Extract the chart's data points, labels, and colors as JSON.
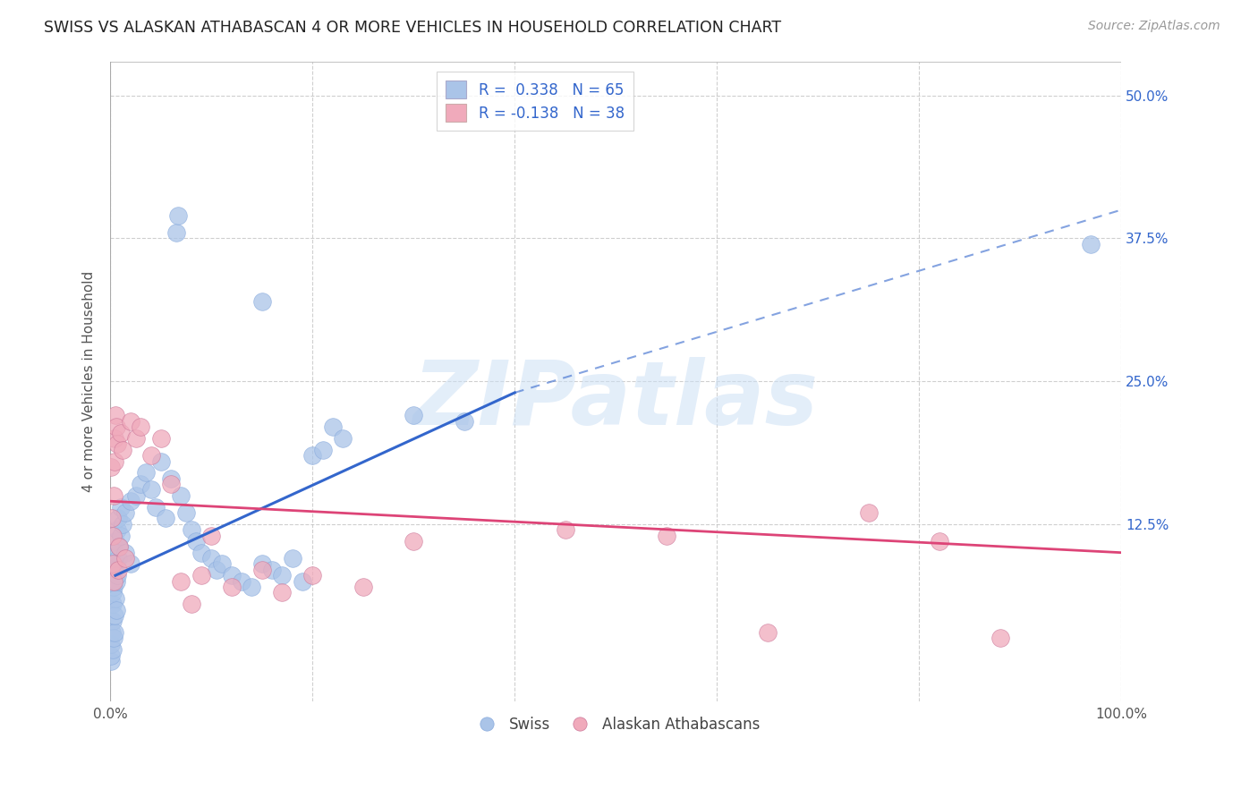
{
  "title": "SWISS VS ALASKAN ATHABASCAN 4 OR MORE VEHICLES IN HOUSEHOLD CORRELATION CHART",
  "source": "Source: ZipAtlas.com",
  "ylabel": "4 or more Vehicles in Household",
  "xlim": [
    0.0,
    100.0
  ],
  "ylim": [
    -3.0,
    53.0
  ],
  "xticks": [
    0.0,
    20.0,
    40.0,
    60.0,
    80.0,
    100.0
  ],
  "ytick_labels": [
    "12.5%",
    "25.0%",
    "37.5%",
    "50.0%"
  ],
  "yticks": [
    12.5,
    25.0,
    37.5,
    50.0
  ],
  "watermark": "ZIPatlas",
  "swiss_color": "#aac4e8",
  "alaskan_color": "#f0aabb",
  "swiss_line_color": "#3366cc",
  "alaskan_line_color": "#dd4477",
  "swiss_R": 0.338,
  "swiss_N": 65,
  "alaskan_R": -0.138,
  "alaskan_N": 38,
  "legend_text_color": "#3366cc",
  "background_color": "#ffffff",
  "grid_color": "#bbbbbb",
  "swiss_line_start_x": 0.5,
  "swiss_line_end_x": 40.0,
  "swiss_line_start_y": 8.0,
  "swiss_line_end_y": 24.0,
  "swiss_dash_start_x": 40.0,
  "swiss_dash_end_x": 100.0,
  "swiss_dash_start_y": 24.0,
  "swiss_dash_end_y": 40.0,
  "alaskan_line_start_x": 0.0,
  "alaskan_line_end_x": 100.0,
  "alaskan_line_start_y": 14.5,
  "alaskan_line_end_y": 10.0,
  "swiss_points": [
    [
      0.1,
      0.5
    ],
    [
      0.1,
      1.0
    ],
    [
      0.1,
      2.0
    ],
    [
      0.15,
      3.0
    ],
    [
      0.2,
      1.5
    ],
    [
      0.2,
      4.0
    ],
    [
      0.2,
      5.5
    ],
    [
      0.2,
      6.5
    ],
    [
      0.3,
      2.5
    ],
    [
      0.3,
      7.0
    ],
    [
      0.3,
      8.5
    ],
    [
      0.4,
      3.0
    ],
    [
      0.4,
      4.5
    ],
    [
      0.4,
      9.0
    ],
    [
      0.5,
      6.0
    ],
    [
      0.5,
      10.0
    ],
    [
      0.5,
      11.0
    ],
    [
      0.6,
      5.0
    ],
    [
      0.6,
      7.5
    ],
    [
      0.7,
      8.0
    ],
    [
      0.7,
      12.0
    ],
    [
      0.8,
      9.5
    ],
    [
      0.8,
      13.0
    ],
    [
      0.9,
      10.5
    ],
    [
      1.0,
      11.5
    ],
    [
      1.0,
      14.0
    ],
    [
      1.2,
      12.5
    ],
    [
      1.5,
      13.5
    ],
    [
      1.5,
      10.0
    ],
    [
      2.0,
      14.5
    ],
    [
      2.0,
      9.0
    ],
    [
      2.5,
      15.0
    ],
    [
      3.0,
      16.0
    ],
    [
      3.5,
      17.0
    ],
    [
      4.0,
      15.5
    ],
    [
      4.5,
      14.0
    ],
    [
      5.0,
      18.0
    ],
    [
      5.5,
      13.0
    ],
    [
      6.0,
      16.5
    ],
    [
      7.0,
      15.0
    ],
    [
      7.5,
      13.5
    ],
    [
      8.0,
      12.0
    ],
    [
      8.5,
      11.0
    ],
    [
      9.0,
      10.0
    ],
    [
      10.0,
      9.5
    ],
    [
      10.5,
      8.5
    ],
    [
      11.0,
      9.0
    ],
    [
      12.0,
      8.0
    ],
    [
      13.0,
      7.5
    ],
    [
      14.0,
      7.0
    ],
    [
      15.0,
      9.0
    ],
    [
      16.0,
      8.5
    ],
    [
      17.0,
      8.0
    ],
    [
      18.0,
      9.5
    ],
    [
      19.0,
      7.5
    ],
    [
      20.0,
      18.5
    ],
    [
      21.0,
      19.0
    ],
    [
      22.0,
      21.0
    ],
    [
      23.0,
      20.0
    ],
    [
      30.0,
      22.0
    ],
    [
      35.0,
      21.5
    ],
    [
      6.5,
      38.0
    ],
    [
      6.7,
      39.5
    ],
    [
      15.0,
      32.0
    ],
    [
      97.0,
      37.0
    ]
  ],
  "alaskan_points": [
    [
      0.1,
      17.5
    ],
    [
      0.15,
      13.0
    ],
    [
      0.2,
      9.0
    ],
    [
      0.25,
      11.5
    ],
    [
      0.3,
      7.5
    ],
    [
      0.35,
      15.0
    ],
    [
      0.4,
      18.0
    ],
    [
      0.45,
      20.0
    ],
    [
      0.5,
      22.0
    ],
    [
      0.6,
      21.0
    ],
    [
      0.7,
      19.5
    ],
    [
      0.8,
      8.5
    ],
    [
      0.9,
      10.5
    ],
    [
      1.0,
      20.5
    ],
    [
      1.2,
      19.0
    ],
    [
      1.5,
      9.5
    ],
    [
      2.0,
      21.5
    ],
    [
      2.5,
      20.0
    ],
    [
      3.0,
      21.0
    ],
    [
      4.0,
      18.5
    ],
    [
      5.0,
      20.0
    ],
    [
      6.0,
      16.0
    ],
    [
      7.0,
      7.5
    ],
    [
      8.0,
      5.5
    ],
    [
      9.0,
      8.0
    ],
    [
      10.0,
      11.5
    ],
    [
      12.0,
      7.0
    ],
    [
      15.0,
      8.5
    ],
    [
      17.0,
      6.5
    ],
    [
      20.0,
      8.0
    ],
    [
      25.0,
      7.0
    ],
    [
      30.0,
      11.0
    ],
    [
      45.0,
      12.0
    ],
    [
      55.0,
      11.5
    ],
    [
      65.0,
      3.0
    ],
    [
      75.0,
      13.5
    ],
    [
      82.0,
      11.0
    ],
    [
      88.0,
      2.5
    ]
  ]
}
